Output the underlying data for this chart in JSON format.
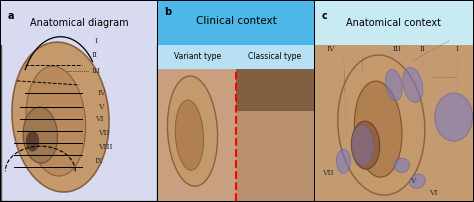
{
  "panel_a": {
    "label": "a",
    "title": "Anatomical diagram",
    "title_bg": "#dde0f0",
    "bg_color": "#dde0f0"
  },
  "panel_b": {
    "label": "b",
    "title": "Clinical context",
    "title_bg": "#4db8e8",
    "subtitle_left": "Variant type",
    "subtitle_right": "Classical type",
    "subtitle_bg": "#b8e2f5"
  },
  "panel_c": {
    "label": "c",
    "title": "Anatomical context",
    "title_bg": "#c8e8f0",
    "bg_color": "#c8e8f0"
  },
  "roman_numerals_a": [
    "I",
    "II",
    "III",
    "IV",
    "V",
    "VI",
    "VII",
    "VIII",
    "IX"
  ],
  "roman_numerals_c": [
    "I",
    "II",
    "III",
    "IV",
    "V",
    "VI",
    "VII"
  ],
  "ear_skin_color": "#c8956c",
  "oval_color": "#7878c8",
  "oval_alpha": 0.6,
  "fig_width": 4.74,
  "fig_height": 2.02,
  "dpi": 100
}
